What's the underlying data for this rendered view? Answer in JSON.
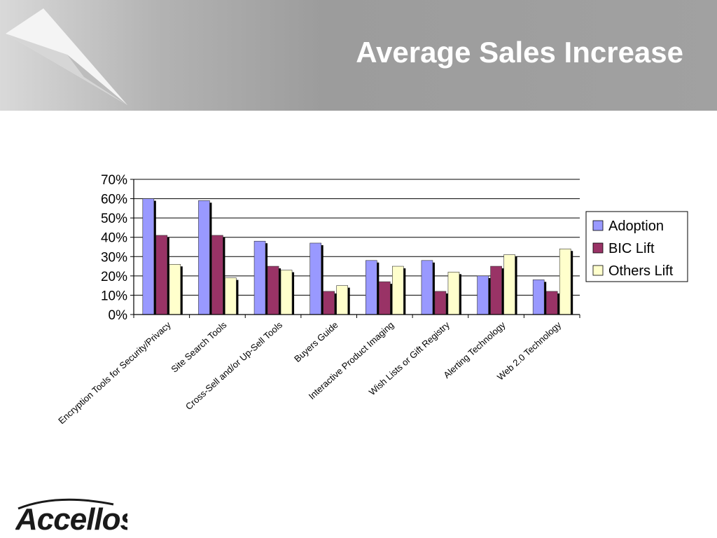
{
  "slide": {
    "title": "Average Sales Increase"
  },
  "logo": {
    "text": "Accellos",
    "icon": "arc-swoosh-icon"
  },
  "decoration": {
    "icon": "paper-plane-icon"
  },
  "colors": {
    "header_gray": "#9c9c9c",
    "adoption": "#9999ff",
    "bic_lift": "#993366",
    "others_lift": "#ffffcc"
  },
  "chart_data": {
    "type": "bar",
    "title": "",
    "xlabel": "",
    "ylabel": "",
    "ylim": [
      0,
      70
    ],
    "yticks": [
      0,
      10,
      20,
      30,
      40,
      50,
      60,
      70
    ],
    "ytick_labels": [
      "0%",
      "10%",
      "20%",
      "30%",
      "40%",
      "50%",
      "60%",
      "70%"
    ],
    "grid": true,
    "legend_position": "right",
    "categories": [
      "Encryption Tools for Security/Privacy",
      "Site Search Tools",
      "Cross-Sell and/or Up-Sell Tools",
      "Buyers Guide",
      "Interactive Product Imaging",
      "Wish Lists or Gift Registry",
      "Alerting Technology",
      "Web 2.0 Technology"
    ],
    "series": [
      {
        "name": "Adoption",
        "color": "#9999ff",
        "values": [
          60,
          59,
          38,
          37,
          28,
          28,
          20,
          18
        ]
      },
      {
        "name": "BIC Lift",
        "color": "#993366",
        "values": [
          41,
          41,
          25,
          12,
          17,
          12,
          25,
          12
        ]
      },
      {
        "name": "Others Lift",
        "color": "#ffffcc",
        "values": [
          26,
          19,
          23,
          15,
          25,
          22,
          31,
          34
        ]
      }
    ]
  }
}
